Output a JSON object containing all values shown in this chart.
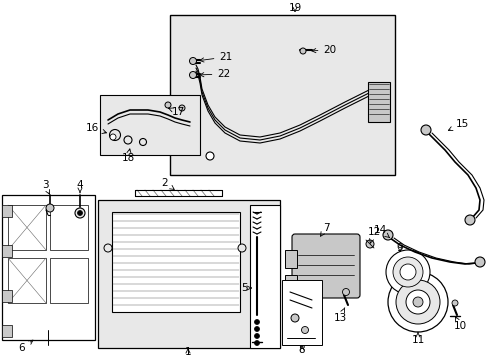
{
  "bg_color": "#ffffff",
  "light_gray": "#e8e8e8",
  "mid_gray": "#c8c8c8",
  "dark_gray": "#666666",
  "black": "#000000",
  "figsize": [
    4.89,
    3.6
  ],
  "dpi": 100,
  "xlim": [
    0,
    489
  ],
  "ylim": [
    0,
    360
  ]
}
